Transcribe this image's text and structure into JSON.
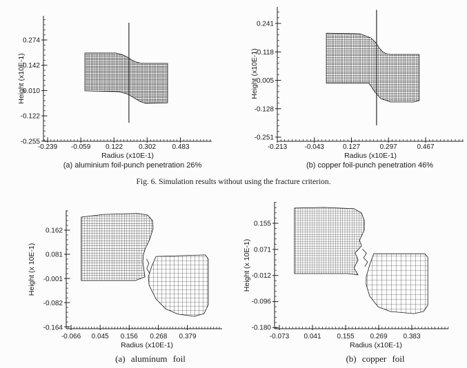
{
  "figure": {
    "caption": "Fig. 6. Simulation results without using the fracture criterion.",
    "background": "#fcfcfc",
    "ink": "#1a1a1a"
  },
  "chart_data": [
    {
      "id": "top-left",
      "type": "mesh",
      "title": "(a) aluminium foil-punch penetration 26%",
      "xlabel": "Radius (x10E-1)",
      "ylabel": "Height (x10E-1)",
      "xticks": [
        -0.239,
        -0.059,
        0.122,
        0.302,
        0.483
      ],
      "yticks": [
        0.274,
        0.142,
        0.01,
        -0.122,
        -0.255
      ],
      "xtick_labels": [
        "-0.239",
        "-0.059",
        "0.122",
        "0.302",
        "0.483"
      ],
      "ytick_labels": [
        "0.274",
        "0.142",
        "0.010",
        "-0.122",
        "-0.255"
      ],
      "xlim": [
        -0.2615,
        0.6514
      ],
      "ylim": [
        -0.2549,
        0.4
      ],
      "grid": false,
      "punch_line": {
        "x": 0.202,
        "y1": 0.364,
        "y2": -0.158
      },
      "mesh_regions": [
        {
          "name": "sheet",
          "density": "fine",
          "outline": [
            [
              -0.037,
              0.206
            ],
            [
              0.131,
              0.206
            ],
            [
              0.162,
              0.199
            ],
            [
              0.187,
              0.188
            ],
            [
              0.212,
              0.173
            ],
            [
              0.232,
              0.162
            ],
            [
              0.266,
              0.152
            ],
            [
              0.412,
              0.152
            ],
            [
              0.412,
              -0.054
            ],
            [
              0.292,
              -0.057
            ],
            [
              0.262,
              -0.047
            ],
            [
              0.236,
              -0.032
            ],
            [
              0.212,
              -0.018
            ],
            [
              0.191,
              -0.007
            ],
            [
              0.146,
              0.004
            ],
            [
              -0.037,
              0.008
            ]
          ]
        }
      ]
    },
    {
      "id": "top-right",
      "type": "mesh",
      "title": "(b) copper foil-punch penetration 46%",
      "xlabel": "Radius (x10E-1)",
      "ylabel": "Height (x10E-1)",
      "xticks": [
        -0.213,
        -0.043,
        0.127,
        0.297,
        0.467
      ],
      "yticks": [
        0.241,
        0.118,
        -0.005,
        -0.128,
        -0.251
      ],
      "xtick_labels": [
        "-0.213",
        "-0.043",
        "0.127",
        "0.297",
        "0.467"
      ],
      "ytick_labels": [
        "0.241",
        "0.118",
        "-0.005",
        "-0.128",
        "-0.251"
      ],
      "xlim": [
        -0.213,
        0.641
      ],
      "ylim": [
        -0.2688,
        0.3126
      ],
      "grid": false,
      "punch_line": {
        "x": 0.242,
        "y1": 0.3,
        "y2": -0.2
      },
      "mesh_regions": [
        {
          "name": "sheet",
          "density": "fine",
          "outline": [
            [
              0.012,
              0.199
            ],
            [
              0.167,
              0.196
            ],
            [
              0.217,
              0.178
            ],
            [
              0.24,
              0.157
            ],
            [
              0.255,
              0.134
            ],
            [
              0.271,
              0.118
            ],
            [
              0.287,
              0.11
            ],
            [
              0.306,
              0.107
            ],
            [
              0.438,
              0.107
            ],
            [
              0.438,
              -0.093
            ],
            [
              0.413,
              -0.099
            ],
            [
              0.306,
              -0.099
            ],
            [
              0.261,
              -0.084
            ],
            [
              0.233,
              -0.054
            ],
            [
              0.214,
              -0.027
            ],
            [
              0.208,
              -0.018
            ],
            [
              0.012,
              -0.018
            ]
          ]
        }
      ]
    },
    {
      "id": "bottom-left",
      "type": "mesh",
      "title": "(a)  aluminum  foil",
      "xlabel": "Radius (x10E-1)",
      "ylabel": "Height (x 10E-1)",
      "xticks": [
        -0.066,
        0.045,
        0.156,
        0.268,
        0.379
      ],
      "yticks": [
        0.162,
        0.081,
        -0.001,
        -0.082,
        -0.164
      ],
      "xtick_labels": [
        "-0.066",
        "0.045",
        "0.156",
        "0.268",
        "0.379"
      ],
      "ytick_labels": [
        "0.162",
        "0.081",
        "-0.001",
        "-0.082",
        "-0.164"
      ],
      "xlim": [
        -0.0844,
        0.5106
      ],
      "ylim": [
        -0.1687,
        0.2291
      ],
      "grid": false,
      "fracture_fragments": [
        [
          0.222,
          0.066
        ],
        [
          0.231,
          0.05
        ],
        [
          0.223,
          0.034
        ],
        [
          0.233,
          0.018
        ]
      ],
      "mesh_regions": [
        {
          "name": "left-sheet",
          "density": "medium",
          "outline": [
            [
              -0.027,
              0.206
            ],
            [
              0.058,
              0.215
            ],
            [
              0.189,
              0.218
            ],
            [
              0.226,
              0.213
            ],
            [
              0.245,
              0.194
            ],
            [
              0.247,
              0.167
            ],
            [
              0.234,
              0.13
            ],
            [
              0.218,
              0.102
            ],
            [
              0.21,
              0.079
            ],
            [
              0.208,
              0.056
            ],
            [
              0.216,
              0.005
            ],
            [
              0.179,
              -0.007
            ],
            [
              -0.027,
              -0.007
            ]
          ]
        },
        {
          "name": "right-sheet",
          "density": "coarse",
          "outline": [
            [
              0.258,
              0.074
            ],
            [
              0.447,
              0.079
            ],
            [
              0.458,
              0.065
            ],
            [
              0.458,
              -0.088
            ],
            [
              0.442,
              -0.118
            ],
            [
              0.405,
              -0.127
            ],
            [
              0.342,
              -0.12
            ],
            [
              0.295,
              -0.102
            ],
            [
              0.258,
              -0.069
            ],
            [
              0.232,
              -0.023
            ],
            [
              0.229,
              0.005
            ],
            [
              0.24,
              0.037
            ]
          ]
        }
      ]
    },
    {
      "id": "bottom-right",
      "type": "mesh",
      "title": "(b)  copper  foil",
      "xlabel": "Radius (x10E-1)",
      "ylabel": "Height (x 10E-1)",
      "xticks": [
        -0.073,
        0.041,
        0.155,
        0.269,
        0.383
      ],
      "yticks": [
        0.155,
        0.071,
        -0.012,
        -0.096,
        -0.18
      ],
      "xtick_labels": [
        "-0.073",
        "0.041",
        "0.155",
        "0.269",
        "0.383"
      ],
      "ytick_labels": [
        "0.155",
        "0.071",
        "-0.012",
        "-0.096",
        "-0.180"
      ],
      "xlim": [
        -0.0896,
        0.5088
      ],
      "ylim": [
        -0.1845,
        0.2238
      ],
      "grid": false,
      "fracture_fragments": [
        [
          0.213,
          0.072
        ],
        [
          0.227,
          0.058
        ],
        [
          0.217,
          0.044
        ],
        [
          0.231,
          0.03
        ],
        [
          0.221,
          0.016
        ]
      ],
      "mesh_regions": [
        {
          "name": "left-sheet",
          "density": "medium",
          "outline": [
            [
              -0.021,
              0.204
            ],
            [
              0.081,
              0.206
            ],
            [
              0.184,
              0.202
            ],
            [
              0.21,
              0.188
            ],
            [
              0.219,
              0.164
            ],
            [
              0.219,
              0.133
            ],
            [
              0.203,
              0.1
            ],
            [
              0.21,
              0.082
            ],
            [
              0.188,
              0.06
            ],
            [
              0.198,
              0.037
            ],
            [
              0.184,
              0.011
            ],
            [
              0.198,
              -0.011
            ],
            [
              0.162,
              -0.007
            ],
            [
              -0.021,
              -0.007
            ]
          ]
        },
        {
          "name": "right-sheet",
          "density": "coarse",
          "outline": [
            [
              0.252,
              0.057
            ],
            [
              0.428,
              0.057
            ],
            [
              0.438,
              0.046
            ],
            [
              0.438,
              -0.109
            ],
            [
              0.423,
              -0.129
            ],
            [
              0.39,
              -0.136
            ],
            [
              0.309,
              -0.129
            ],
            [
              0.267,
              -0.114
            ],
            [
              0.238,
              -0.08
            ],
            [
              0.226,
              -0.043
            ],
            [
              0.226,
              -0.018
            ],
            [
              0.238,
              0.022
            ]
          ]
        }
      ]
    }
  ]
}
